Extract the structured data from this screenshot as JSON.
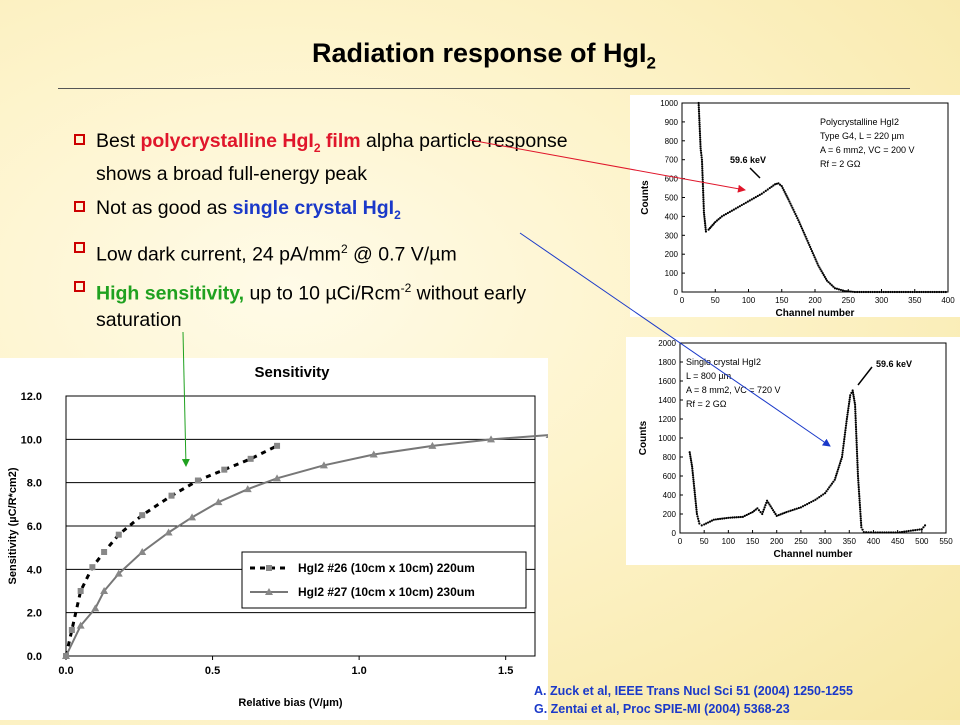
{
  "slide": {
    "title": "Radiation response of HgI",
    "title_sub": "2"
  },
  "bullets": [
    {
      "parts": [
        "Best ",
        "polycrystalline HgI",
        "2",
        " film",
        " alpha particle response shows a broad full-energy peak"
      ]
    },
    {
      "parts": [
        "Not as good as ",
        "single crystal HgI",
        "2"
      ]
    },
    {
      "parts": [
        "Low dark current, 24 pA/mm",
        "2",
        " @ 0.7 V/",
        "µ",
        "m"
      ]
    },
    {
      "parts": [
        "High sensitivity,",
        " up to 10 ",
        "µ",
        "Ci/Rcm",
        "-2",
        " without early saturation"
      ]
    }
  ],
  "references": [
    "A. Zuck et al, IEEE Trans Nucl Sci 51 (2004) 1250-1255",
    "G. Zentai et al, Proc SPIE-MI (2004) 5368-23"
  ],
  "colors": {
    "red": "#e0162b",
    "blue": "#1a39c9",
    "green": "#1fa11f"
  },
  "chart_data": [
    {
      "type": "line",
      "title": "Sensitivity",
      "xlabel": "Relative bias (V/µm)",
      "ylabel": "Sensitivity (µC/R*cm2)",
      "xlim": [
        0.0,
        1.6
      ],
      "ylim": [
        0.0,
        12.0
      ],
      "x_ticks": [
        "0.0",
        "0.5",
        "1.0",
        "1.5"
      ],
      "y_ticks": [
        "0.0",
        "2.0",
        "4.0",
        "6.0",
        "8.0",
        "10.0",
        "12.0"
      ],
      "legend_position": "bottom-right",
      "grid": true,
      "series": [
        {
          "name": "HgI2 #26 (10cm x 10cm) 220um",
          "style": "dashed-square",
          "x": [
            0.0,
            0.02,
            0.05,
            0.09,
            0.13,
            0.18,
            0.26,
            0.36,
            0.45,
            0.54,
            0.63,
            0.72
          ],
          "y": [
            0.0,
            1.2,
            3.0,
            4.1,
            4.8,
            5.6,
            6.5,
            7.4,
            8.1,
            8.6,
            9.1,
            9.7
          ]
        },
        {
          "name": "HgI2 #27 (10cm x 10cm) 230um",
          "style": "solid-triangle",
          "x": [
            0.0,
            0.05,
            0.1,
            0.13,
            0.18,
            0.26,
            0.35,
            0.43,
            0.52,
            0.62,
            0.72,
            0.88,
            1.05,
            1.25,
            1.45,
            1.65
          ],
          "y": [
            0.0,
            1.4,
            2.2,
            3.0,
            3.8,
            4.8,
            5.7,
            6.4,
            7.1,
            7.7,
            8.2,
            8.8,
            9.3,
            9.7,
            10.0,
            10.2
          ]
        }
      ]
    },
    {
      "type": "line",
      "title": "",
      "xlabel": "Channel number",
      "ylabel": "Counts",
      "xlim": [
        0,
        400
      ],
      "ylim": [
        0,
        1000
      ],
      "x_ticks": [
        "0",
        "50",
        "100",
        "150",
        "200",
        "250",
        "300",
        "350",
        "400"
      ],
      "y_ticks": [
        "0",
        "100",
        "200",
        "300",
        "400",
        "500",
        "600",
        "700",
        "800",
        "900",
        "1000"
      ],
      "annotations": [
        "Polycrystalline HgI2",
        "Type G4, L = 220 µm",
        "A = 6 mm2, VC = 200 V",
        "Rf = 2 GΩ",
        "59.6 keV"
      ],
      "series": [
        {
          "name": "",
          "x": [
            25,
            28,
            30,
            33,
            36,
            40,
            50,
            60,
            75,
            90,
            105,
            120,
            132,
            140,
            145,
            150,
            160,
            175,
            190,
            205,
            218,
            230,
            245,
            260,
            300,
            350,
            400
          ],
          "y": [
            1000,
            760,
            700,
            420,
            320,
            330,
            370,
            400,
            430,
            460,
            490,
            520,
            550,
            570,
            575,
            560,
            490,
            380,
            260,
            140,
            60,
            20,
            5,
            0,
            0,
            0,
            0
          ]
        }
      ]
    },
    {
      "type": "line",
      "title": "",
      "xlabel": "Channel number",
      "ylabel": "Counts",
      "xlim": [
        0,
        550
      ],
      "ylim": [
        0,
        2000
      ],
      "x_ticks": [
        "0",
        "50",
        "100",
        "150",
        "200",
        "250",
        "300",
        "350",
        "400",
        "450",
        "500",
        "550"
      ],
      "y_ticks": [
        "0",
        "200",
        "400",
        "600",
        "800",
        "1000",
        "1200",
        "1400",
        "1600",
        "1800",
        "2000"
      ],
      "annotations": [
        "Single crystal HgI2",
        "L = 800 µm",
        "A = 8 mm2, VC = 720 V",
        "Rf = 2 GΩ",
        "59.6 keV"
      ],
      "series": [
        {
          "name": "",
          "x": [
            20,
            25,
            30,
            35,
            40,
            45,
            50,
            70,
            100,
            130,
            150,
            160,
            170,
            180,
            190,
            200,
            220,
            250,
            280,
            300,
            320,
            335,
            345,
            352,
            357,
            362,
            368,
            375,
            380,
            400,
            450,
            500,
            510
          ],
          "y": [
            850,
            700,
            450,
            200,
            100,
            80,
            90,
            140,
            160,
            170,
            220,
            260,
            200,
            340,
            260,
            180,
            220,
            270,
            350,
            420,
            560,
            800,
            1200,
            1450,
            1500,
            1350,
            600,
            60,
            10,
            5,
            5,
            40,
            100
          ]
        }
      ]
    }
  ]
}
